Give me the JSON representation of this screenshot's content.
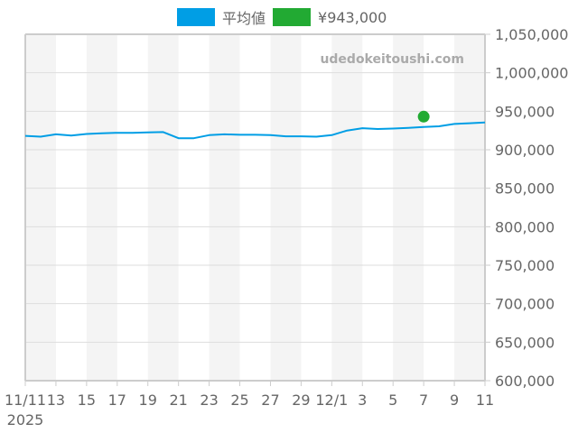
{
  "legend": {
    "items": [
      {
        "label": "平均値",
        "color": "#009EE5"
      },
      {
        "label": "¥943,000",
        "color": "#22AA33"
      }
    ]
  },
  "watermark": "udedokeitoushi.com",
  "chart_data": {
    "type": "line",
    "title": "",
    "xlabel": "",
    "ylabel": "",
    "ylim": [
      600000,
      1050000
    ],
    "yticks": [
      600000,
      650000,
      700000,
      750000,
      800000,
      850000,
      900000,
      950000,
      1000000,
      1050000
    ],
    "ytick_labels": [
      "600,000",
      "650,000",
      "700,000",
      "750,000",
      "800,000",
      "850,000",
      "900,000",
      "950,000",
      "1,000,000",
      "1,050,000"
    ],
    "y_axis_position": "right",
    "grid": true,
    "legend_position": "top",
    "xtick_labels": [
      "11/11\n2025",
      "13",
      "15",
      "17",
      "19",
      "21",
      "23",
      "25",
      "27",
      "29",
      "12/1",
      "3",
      "5",
      "7",
      "9",
      "11"
    ],
    "x_days": 30,
    "series": [
      {
        "name": "平均値",
        "color": "#009EE5",
        "type": "line",
        "x": [
          "11/11",
          "11/12",
          "11/13",
          "11/14",
          "11/15",
          "11/16",
          "11/17",
          "11/18",
          "11/19",
          "11/20",
          "11/21",
          "11/22",
          "11/23",
          "11/24",
          "11/25",
          "11/26",
          "11/27",
          "11/28",
          "11/29",
          "11/30",
          "12/1",
          "12/2",
          "12/3",
          "12/4",
          "12/5",
          "12/6",
          "12/7",
          "12/8",
          "12/9",
          "12/10",
          "12/11"
        ],
        "values": [
          918000,
          917000,
          920000,
          918500,
          920500,
          921500,
          922000,
          922000,
          922500,
          923000,
          915000,
          915000,
          919000,
          920000,
          919500,
          919500,
          919000,
          917500,
          917500,
          917000,
          919000,
          925000,
          928000,
          927000,
          927500,
          928500,
          929500,
          930500,
          933500,
          934500,
          935500
        ]
      },
      {
        "name": "¥943,000",
        "color": "#22AA33",
        "type": "scatter",
        "x": [
          "12/7"
        ],
        "values": [
          943000
        ]
      }
    ]
  }
}
